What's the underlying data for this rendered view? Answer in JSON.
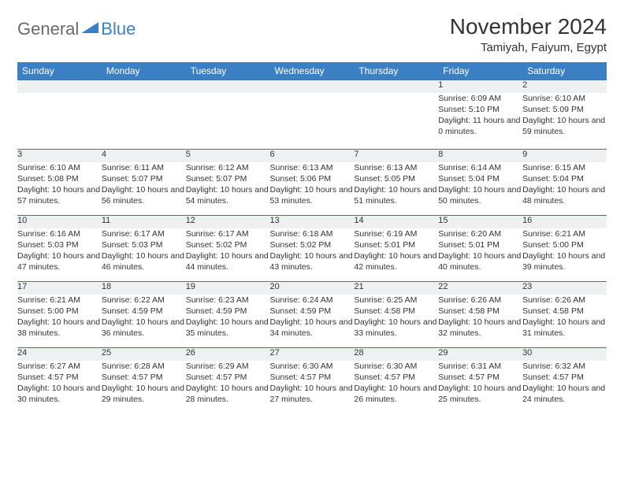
{
  "logo": {
    "word1": "General",
    "word2": "Blue"
  },
  "header": {
    "month_title": "November 2024",
    "location": "Tamiyah, Faiyum, Egypt"
  },
  "colors": {
    "header_bg": "#3b7fc4",
    "header_fg": "#ffffff",
    "daynum_bg": "#eef0f2",
    "row_border": "#4b6fa0",
    "text": "#333333",
    "logo_gray": "#6a6a6a",
    "logo_blue": "#3b7fc4"
  },
  "weekdays": [
    "Sunday",
    "Monday",
    "Tuesday",
    "Wednesday",
    "Thursday",
    "Friday",
    "Saturday"
  ],
  "weeks": [
    {
      "nums": [
        "",
        "",
        "",
        "",
        "",
        "1",
        "2"
      ],
      "cells": [
        {
          "sunrise": "",
          "sunset": "",
          "daylight": ""
        },
        {
          "sunrise": "",
          "sunset": "",
          "daylight": ""
        },
        {
          "sunrise": "",
          "sunset": "",
          "daylight": ""
        },
        {
          "sunrise": "",
          "sunset": "",
          "daylight": ""
        },
        {
          "sunrise": "",
          "sunset": "",
          "daylight": ""
        },
        {
          "sunrise": "Sunrise: 6:09 AM",
          "sunset": "Sunset: 5:10 PM",
          "daylight": "Daylight: 11 hours and 0 minutes."
        },
        {
          "sunrise": "Sunrise: 6:10 AM",
          "sunset": "Sunset: 5:09 PM",
          "daylight": "Daylight: 10 hours and 59 minutes."
        }
      ]
    },
    {
      "nums": [
        "3",
        "4",
        "5",
        "6",
        "7",
        "8",
        "9"
      ],
      "cells": [
        {
          "sunrise": "Sunrise: 6:10 AM",
          "sunset": "Sunset: 5:08 PM",
          "daylight": "Daylight: 10 hours and 57 minutes."
        },
        {
          "sunrise": "Sunrise: 6:11 AM",
          "sunset": "Sunset: 5:07 PM",
          "daylight": "Daylight: 10 hours and 56 minutes."
        },
        {
          "sunrise": "Sunrise: 6:12 AM",
          "sunset": "Sunset: 5:07 PM",
          "daylight": "Daylight: 10 hours and 54 minutes."
        },
        {
          "sunrise": "Sunrise: 6:13 AM",
          "sunset": "Sunset: 5:06 PM",
          "daylight": "Daylight: 10 hours and 53 minutes."
        },
        {
          "sunrise": "Sunrise: 6:13 AM",
          "sunset": "Sunset: 5:05 PM",
          "daylight": "Daylight: 10 hours and 51 minutes."
        },
        {
          "sunrise": "Sunrise: 6:14 AM",
          "sunset": "Sunset: 5:04 PM",
          "daylight": "Daylight: 10 hours and 50 minutes."
        },
        {
          "sunrise": "Sunrise: 6:15 AM",
          "sunset": "Sunset: 5:04 PM",
          "daylight": "Daylight: 10 hours and 48 minutes."
        }
      ]
    },
    {
      "nums": [
        "10",
        "11",
        "12",
        "13",
        "14",
        "15",
        "16"
      ],
      "cells": [
        {
          "sunrise": "Sunrise: 6:16 AM",
          "sunset": "Sunset: 5:03 PM",
          "daylight": "Daylight: 10 hours and 47 minutes."
        },
        {
          "sunrise": "Sunrise: 6:17 AM",
          "sunset": "Sunset: 5:03 PM",
          "daylight": "Daylight: 10 hours and 46 minutes."
        },
        {
          "sunrise": "Sunrise: 6:17 AM",
          "sunset": "Sunset: 5:02 PM",
          "daylight": "Daylight: 10 hours and 44 minutes."
        },
        {
          "sunrise": "Sunrise: 6:18 AM",
          "sunset": "Sunset: 5:02 PM",
          "daylight": "Daylight: 10 hours and 43 minutes."
        },
        {
          "sunrise": "Sunrise: 6:19 AM",
          "sunset": "Sunset: 5:01 PM",
          "daylight": "Daylight: 10 hours and 42 minutes."
        },
        {
          "sunrise": "Sunrise: 6:20 AM",
          "sunset": "Sunset: 5:01 PM",
          "daylight": "Daylight: 10 hours and 40 minutes."
        },
        {
          "sunrise": "Sunrise: 6:21 AM",
          "sunset": "Sunset: 5:00 PM",
          "daylight": "Daylight: 10 hours and 39 minutes."
        }
      ]
    },
    {
      "nums": [
        "17",
        "18",
        "19",
        "20",
        "21",
        "22",
        "23"
      ],
      "cells": [
        {
          "sunrise": "Sunrise: 6:21 AM",
          "sunset": "Sunset: 5:00 PM",
          "daylight": "Daylight: 10 hours and 38 minutes."
        },
        {
          "sunrise": "Sunrise: 6:22 AM",
          "sunset": "Sunset: 4:59 PM",
          "daylight": "Daylight: 10 hours and 36 minutes."
        },
        {
          "sunrise": "Sunrise: 6:23 AM",
          "sunset": "Sunset: 4:59 PM",
          "daylight": "Daylight: 10 hours and 35 minutes."
        },
        {
          "sunrise": "Sunrise: 6:24 AM",
          "sunset": "Sunset: 4:59 PM",
          "daylight": "Daylight: 10 hours and 34 minutes."
        },
        {
          "sunrise": "Sunrise: 6:25 AM",
          "sunset": "Sunset: 4:58 PM",
          "daylight": "Daylight: 10 hours and 33 minutes."
        },
        {
          "sunrise": "Sunrise: 6:26 AM",
          "sunset": "Sunset: 4:58 PM",
          "daylight": "Daylight: 10 hours and 32 minutes."
        },
        {
          "sunrise": "Sunrise: 6:26 AM",
          "sunset": "Sunset: 4:58 PM",
          "daylight": "Daylight: 10 hours and 31 minutes."
        }
      ]
    },
    {
      "nums": [
        "24",
        "25",
        "26",
        "27",
        "28",
        "29",
        "30"
      ],
      "cells": [
        {
          "sunrise": "Sunrise: 6:27 AM",
          "sunset": "Sunset: 4:57 PM",
          "daylight": "Daylight: 10 hours and 30 minutes."
        },
        {
          "sunrise": "Sunrise: 6:28 AM",
          "sunset": "Sunset: 4:57 PM",
          "daylight": "Daylight: 10 hours and 29 minutes."
        },
        {
          "sunrise": "Sunrise: 6:29 AM",
          "sunset": "Sunset: 4:57 PM",
          "daylight": "Daylight: 10 hours and 28 minutes."
        },
        {
          "sunrise": "Sunrise: 6:30 AM",
          "sunset": "Sunset: 4:57 PM",
          "daylight": "Daylight: 10 hours and 27 minutes."
        },
        {
          "sunrise": "Sunrise: 6:30 AM",
          "sunset": "Sunset: 4:57 PM",
          "daylight": "Daylight: 10 hours and 26 minutes."
        },
        {
          "sunrise": "Sunrise: 6:31 AM",
          "sunset": "Sunset: 4:57 PM",
          "daylight": "Daylight: 10 hours and 25 minutes."
        },
        {
          "sunrise": "Sunrise: 6:32 AM",
          "sunset": "Sunset: 4:57 PM",
          "daylight": "Daylight: 10 hours and 24 minutes."
        }
      ]
    }
  ]
}
